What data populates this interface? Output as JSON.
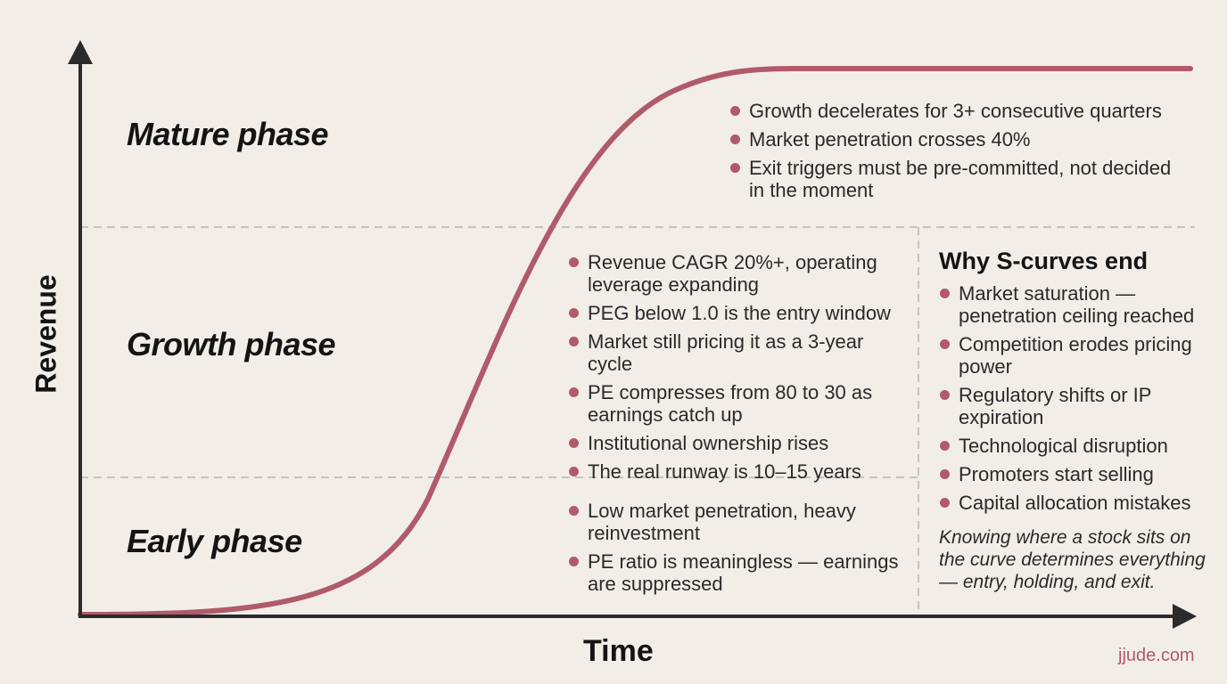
{
  "axes": {
    "y_label": "Revenue",
    "x_label": "Time"
  },
  "phases": {
    "mature": {
      "label": "Mature phase",
      "bullets": [
        "Growth decelerates for 3+ consecutive quarters",
        "Market penetration crosses 40%",
        "Exit triggers must be pre-committed, not decided in the moment"
      ]
    },
    "growth": {
      "label": "Growth phase",
      "bullets": [
        "Revenue CAGR 20%+, operating leverage expanding",
        "PEG below 1.0 is the entry window",
        "Market still pricing it as a 3-year cycle",
        "PE compresses from 80 to 30 as earnings catch up",
        "Institutional ownership rises",
        "The real runway is 10–15 years"
      ]
    },
    "early": {
      "label": "Early phase",
      "bullets": [
        "Low market penetration, heavy reinvestment",
        "PE ratio is meaningless — earnings are suppressed"
      ]
    }
  },
  "why_end": {
    "title": "Why S-curves end",
    "bullets": [
      "Market saturation — penetration ceiling reached",
      "Competition erodes pricing power",
      "Regulatory shifts or IP expiration",
      "Technological disruption",
      "Promoters start selling",
      "Capital allocation mistakes"
    ],
    "note": "Knowing where a stock sits on the curve determines everything — entry, holding, and exit."
  },
  "credit": "jjude.com",
  "colors": {
    "curve": "#b05a6a",
    "bullet": "#b05a6a",
    "axis": "#2b2b2b",
    "divider": "#c9c2bc",
    "background": "#f3ede8"
  }
}
